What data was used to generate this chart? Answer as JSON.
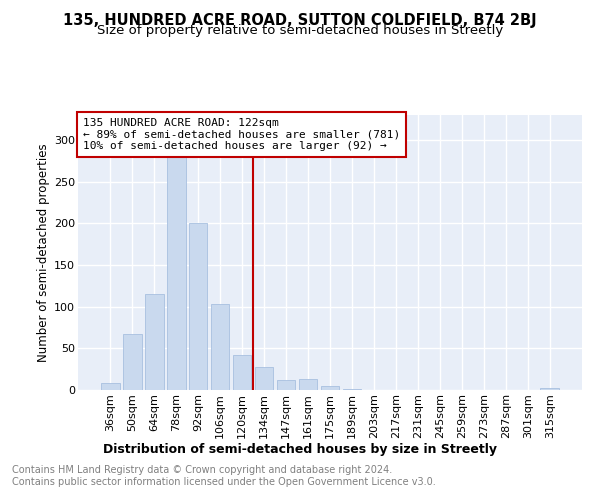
{
  "title": "135, HUNDRED ACRE ROAD, SUTTON COLDFIELD, B74 2BJ",
  "subtitle": "Size of property relative to semi-detached houses in Streetly",
  "xlabel": "Distribution of semi-detached houses by size in Streetly",
  "ylabel": "Number of semi-detached properties",
  "categories": [
    "36sqm",
    "50sqm",
    "64sqm",
    "78sqm",
    "92sqm",
    "106sqm",
    "120sqm",
    "134sqm",
    "147sqm",
    "161sqm",
    "175sqm",
    "189sqm",
    "203sqm",
    "217sqm",
    "231sqm",
    "245sqm",
    "259sqm",
    "273sqm",
    "287sqm",
    "301sqm",
    "315sqm"
  ],
  "values": [
    8,
    67,
    115,
    290,
    200,
    103,
    42,
    28,
    12,
    13,
    5,
    1,
    0,
    0,
    0,
    0,
    0,
    0,
    0,
    0,
    2
  ],
  "bar_color": "#c9d9ee",
  "bar_edge_color": "#a8c0e0",
  "vline_color": "#c00000",
  "vline_x": 6.5,
  "annotation_text_line1": "135 HUNDRED ACRE ROAD: 122sqm",
  "annotation_text_line2": "← 89% of semi-detached houses are smaller (781)",
  "annotation_text_line3": "10% of semi-detached houses are larger (92) →",
  "annotation_box_edgecolor": "#c00000",
  "ylim": [
    0,
    330
  ],
  "yticks": [
    0,
    50,
    100,
    150,
    200,
    250,
    300
  ],
  "plot_bg_color": "#e8eef8",
  "grid_color": "#ffffff",
  "title_fontsize": 10.5,
  "subtitle_fontsize": 9.5,
  "xlabel_fontsize": 9,
  "ylabel_fontsize": 8.5,
  "tick_fontsize": 8,
  "annotation_fontsize": 8,
  "footer_fontsize": 7,
  "footer_line1": "Contains HM Land Registry data © Crown copyright and database right 2024.",
  "footer_line2": "Contains public sector information licensed under the Open Government Licence v3.0."
}
